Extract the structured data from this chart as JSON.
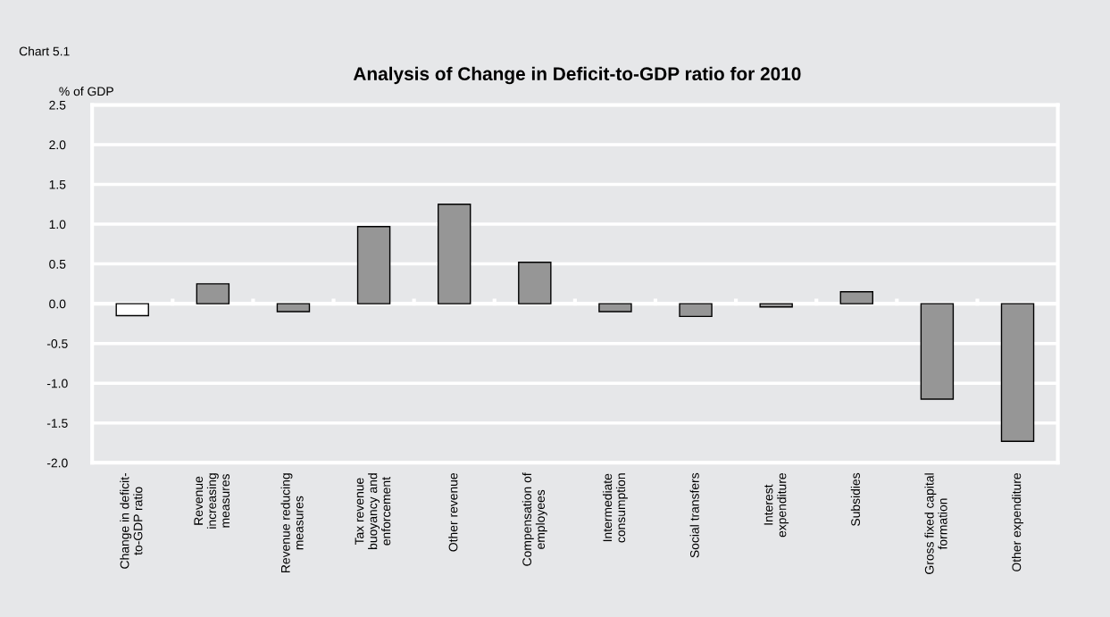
{
  "chart_data": {
    "type": "bar",
    "title": "Analysis of Change in Deficit-to-GDP ratio for 2010",
    "ylabel": "% of GDP",
    "annotations": [
      "Chart 5.1"
    ],
    "categories": [
      "Change in deficit-\nto-GDP ratio",
      "Revenue\nincreasing\nmeasures",
      "Revenue reducing\nmeasures",
      "Tax revenue\nbuoyancy and\nenforcement",
      "Other revenue",
      "Compensation of\nemployees",
      "Intermediate\nconsumption",
      "Social transfers",
      "Interest\nexpenditure",
      "Subsidies",
      "Gross fixed capital\nformation",
      "Other expenditure"
    ],
    "values": [
      -0.15,
      0.25,
      -0.1,
      0.97,
      1.25,
      0.52,
      -0.1,
      -0.16,
      -0.04,
      0.15,
      -1.2,
      -1.73
    ],
    "colors": [
      "#ffffff",
      "#969696",
      "#969696",
      "#969696",
      "#969696",
      "#969696",
      "#969696",
      "#969696",
      "#969696",
      "#969696",
      "#969696",
      "#969696"
    ],
    "ylim": [
      -2.0,
      2.5
    ],
    "yticks": [
      {
        "value": -2.0,
        "label": "-2.0"
      },
      {
        "value": -1.5,
        "label": "-1.5"
      },
      {
        "value": -1.0,
        "label": "-1.0"
      },
      {
        "value": -0.5,
        "label": "-0.5"
      },
      {
        "value": 0.0,
        "label": "0.0"
      },
      {
        "value": 0.5,
        "label": "0.5"
      },
      {
        "value": 1.0,
        "label": "1.0"
      },
      {
        "value": 1.5,
        "label": "1.5"
      },
      {
        "value": 2.0,
        "label": "2.0"
      },
      {
        "value": 2.5,
        "label": "2.5"
      }
    ],
    "grid": "y",
    "legend": false
  }
}
